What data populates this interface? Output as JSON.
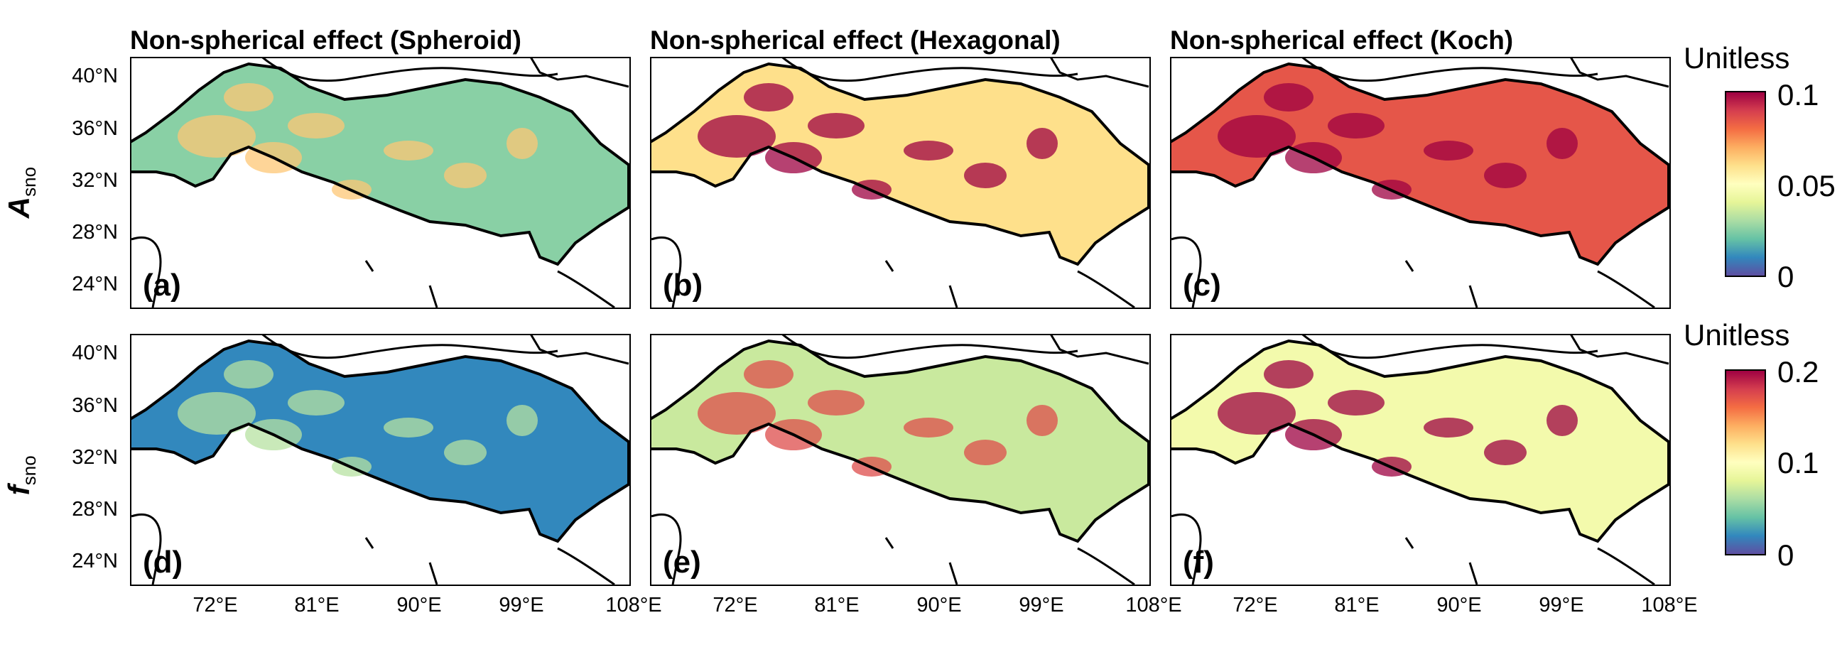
{
  "row_labels": {
    "top": {
      "main": "A",
      "sub": "sno"
    },
    "bottom": {
      "main": "f",
      "sub": "sno"
    }
  },
  "panels": [
    {
      "title": "Non-spherical effect (Spheroid)",
      "letter": "(a)",
      "row": "top",
      "mean_value": 0.025
    },
    {
      "title": "Non-spherical effect (Hexagonal)",
      "letter": "(b)",
      "row": "top",
      "mean_value": 0.06
    },
    {
      "title": "Non-spherical effect (Koch)",
      "letter": "(c)",
      "row": "top",
      "mean_value": 0.085
    },
    {
      "title": "",
      "letter": "(d)",
      "row": "bottom",
      "mean_value": 0.02
    },
    {
      "title": "",
      "letter": "(e)",
      "row": "bottom",
      "mean_value": 0.07
    },
    {
      "title": "",
      "letter": "(f)",
      "row": "bottom",
      "mean_value": 0.09
    }
  ],
  "lat_ticks": [
    "40°N",
    "36°N",
    "32°N",
    "28°N",
    "24°N"
  ],
  "lon_ticks": [
    "72°E",
    "81°E",
    "90°E",
    "99°E",
    "108°E"
  ],
  "colorbars": [
    {
      "title": "Unitless",
      "max_label": "0.1",
      "mid_label": "0.05",
      "min_label": "0",
      "range": [
        0,
        0.1
      ]
    },
    {
      "title": "Unitless",
      "max_label": "0.2",
      "mid_label": "0.1",
      "min_label": "0",
      "range": [
        0,
        0.2
      ]
    }
  ],
  "colormap": [
    "#5e4fa2",
    "#3288bd",
    "#66c2a5",
    "#abdda4",
    "#e6f598",
    "#ffffbf",
    "#fee08b",
    "#fdae61",
    "#f46d43",
    "#d53e4f",
    "#9e0142"
  ]
}
